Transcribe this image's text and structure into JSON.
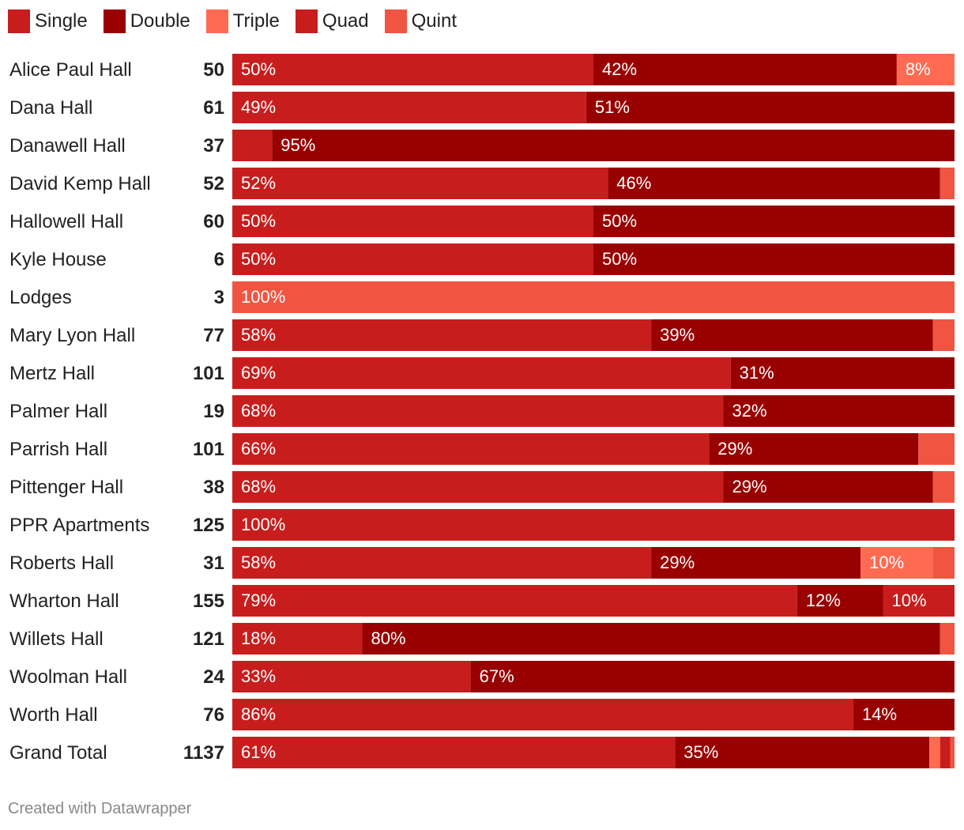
{
  "chart_data": {
    "type": "bar",
    "orientation": "horizontal",
    "stacked": true,
    "normalized": true,
    "series_names": [
      "Single",
      "Double",
      "Triple",
      "Quad",
      "Quint"
    ],
    "colors": {
      "Single": "#c71e1d",
      "Double": "#990000",
      "Triple": "#ff6b52",
      "Quad": "#c71e1d",
      "Quint": "#f05541"
    },
    "rows": [
      {
        "name": "Alice Paul Hall",
        "total": "50",
        "segments": [
          {
            "series": "Single",
            "value": 50,
            "label": "50%"
          },
          {
            "series": "Double",
            "value": 42,
            "label": "42%"
          },
          {
            "series": "Triple",
            "value": 8,
            "label": "8%"
          }
        ]
      },
      {
        "name": "Dana Hall",
        "total": "61",
        "segments": [
          {
            "series": "Single",
            "value": 49,
            "label": "49%"
          },
          {
            "series": "Double",
            "value": 51,
            "label": "51%"
          }
        ]
      },
      {
        "name": "Danawell Hall",
        "total": "37",
        "segments": [
          {
            "series": "Single",
            "value": 5.5,
            "label": ""
          },
          {
            "series": "Double",
            "value": 94.5,
            "label": "95%"
          }
        ]
      },
      {
        "name": "David Kemp Hall",
        "total": "52",
        "segments": [
          {
            "series": "Single",
            "value": 52,
            "label": "52%"
          },
          {
            "series": "Double",
            "value": 46,
            "label": "46%"
          },
          {
            "series": "Quint",
            "value": 2,
            "label": ""
          }
        ]
      },
      {
        "name": "Hallowell Hall",
        "total": "60",
        "segments": [
          {
            "series": "Single",
            "value": 50,
            "label": "50%"
          },
          {
            "series": "Double",
            "value": 50,
            "label": "50%"
          }
        ]
      },
      {
        "name": "Kyle House",
        "total": "6",
        "segments": [
          {
            "series": "Single",
            "value": 50,
            "label": "50%"
          },
          {
            "series": "Double",
            "value": 50,
            "label": "50%"
          }
        ]
      },
      {
        "name": "Lodges",
        "total": "3",
        "segments": [
          {
            "series": "Quint",
            "value": 100,
            "label": "100%"
          }
        ]
      },
      {
        "name": "Mary Lyon Hall",
        "total": "77",
        "segments": [
          {
            "series": "Single",
            "value": 58,
            "label": "58%"
          },
          {
            "series": "Double",
            "value": 39,
            "label": "39%"
          },
          {
            "series": "Quint",
            "value": 3,
            "label": ""
          }
        ]
      },
      {
        "name": "Mertz Hall",
        "total": "101",
        "segments": [
          {
            "series": "Single",
            "value": 69,
            "label": "69%"
          },
          {
            "series": "Double",
            "value": 31,
            "label": "31%"
          }
        ]
      },
      {
        "name": "Palmer Hall",
        "total": "19",
        "segments": [
          {
            "series": "Single",
            "value": 68,
            "label": "68%"
          },
          {
            "series": "Double",
            "value": 32,
            "label": "32%"
          }
        ]
      },
      {
        "name": "Parrish Hall",
        "total": "101",
        "segments": [
          {
            "series": "Single",
            "value": 66,
            "label": "66%"
          },
          {
            "series": "Double",
            "value": 29,
            "label": "29%"
          },
          {
            "series": "Quint",
            "value": 5,
            "label": ""
          }
        ]
      },
      {
        "name": "Pittenger Hall",
        "total": "38",
        "segments": [
          {
            "series": "Single",
            "value": 68,
            "label": "68%"
          },
          {
            "series": "Double",
            "value": 29,
            "label": "29%"
          },
          {
            "series": "Quint",
            "value": 3,
            "label": ""
          }
        ]
      },
      {
        "name": "PPR Apartments",
        "total": "125",
        "segments": [
          {
            "series": "Single",
            "value": 100,
            "label": "100%"
          }
        ]
      },
      {
        "name": "Roberts Hall",
        "total": "31",
        "segments": [
          {
            "series": "Single",
            "value": 58,
            "label": "58%"
          },
          {
            "series": "Double",
            "value": 29,
            "label": "29%"
          },
          {
            "series": "Triple",
            "value": 10,
            "label": "10%"
          },
          {
            "series": "Quint",
            "value": 3,
            "label": ""
          }
        ]
      },
      {
        "name": "Wharton Hall",
        "total": "155",
        "segments": [
          {
            "series": "Single",
            "value": 79,
            "label": "79%"
          },
          {
            "series": "Double",
            "value": 12,
            "label": "12%"
          },
          {
            "series": "Quad",
            "value": 10,
            "label": "10%"
          }
        ]
      },
      {
        "name": "Willets Hall",
        "total": "121",
        "segments": [
          {
            "series": "Single",
            "value": 18,
            "label": "18%"
          },
          {
            "series": "Double",
            "value": 80,
            "label": "80%"
          },
          {
            "series": "Quint",
            "value": 2,
            "label": ""
          }
        ]
      },
      {
        "name": "Woolman Hall",
        "total": "24",
        "segments": [
          {
            "series": "Single",
            "value": 33,
            "label": "33%"
          },
          {
            "series": "Double",
            "value": 67,
            "label": "67%"
          }
        ]
      },
      {
        "name": "Worth Hall",
        "total": "76",
        "segments": [
          {
            "series": "Single",
            "value": 86,
            "label": "86%"
          },
          {
            "series": "Double",
            "value": 14,
            "label": "14%"
          }
        ]
      },
      {
        "name": "Grand Total",
        "total": "1137",
        "segments": [
          {
            "series": "Single",
            "value": 61.3,
            "label": "61%"
          },
          {
            "series": "Double",
            "value": 35.2,
            "label": "35%"
          },
          {
            "series": "Triple",
            "value": 1.5,
            "label": ""
          },
          {
            "series": "Quad",
            "value": 1.4,
            "label": ""
          },
          {
            "series": "Quint",
            "value": 0.6,
            "label": ""
          }
        ]
      }
    ]
  },
  "footer": {
    "credit": "Created with Datawrapper"
  }
}
